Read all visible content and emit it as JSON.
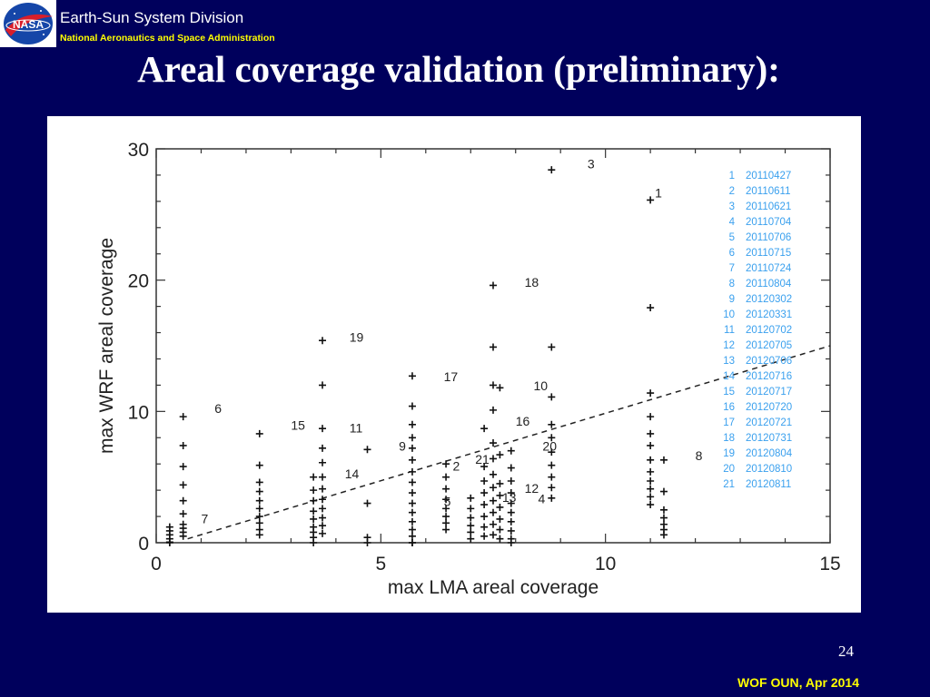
{
  "header": {
    "division": "Earth-Sun System Division",
    "agency": "National Aeronautics and Space Administration",
    "logo_text": "NASA"
  },
  "slide": {
    "title": "Areal coverage validation (preliminary):",
    "number": "24",
    "footer": "WOF OUN, Apr 2014"
  },
  "colors": {
    "background": "#00005c",
    "title": "#ffffff",
    "header_subtitle": "#ffff00",
    "legend_text": "#3aa0ee",
    "marker": "#111111"
  },
  "chart_data": {
    "type": "scatter",
    "title": "",
    "xlabel": "max LMA areal coverage",
    "ylabel": "max WRF areal coverage",
    "xlim": [
      0,
      15
    ],
    "ylim": [
      0,
      30
    ],
    "xticks": [
      "0",
      "5",
      "10",
      "15"
    ],
    "yticks": [
      "0",
      "10",
      "20",
      "30"
    ],
    "legend_position": "top-right",
    "legend": [
      {
        "num": "1",
        "date": "20110427"
      },
      {
        "num": "2",
        "date": "20110611"
      },
      {
        "num": "3",
        "date": "20110621"
      },
      {
        "num": "4",
        "date": "20110704"
      },
      {
        "num": "5",
        "date": "20110706"
      },
      {
        "num": "6",
        "date": "20110715"
      },
      {
        "num": "7",
        "date": "20110724"
      },
      {
        "num": "8",
        "date": "20110804"
      },
      {
        "num": "9",
        "date": "20120302"
      },
      {
        "num": "10",
        "date": "20120331"
      },
      {
        "num": "11",
        "date": "20120702"
      },
      {
        "num": "12",
        "date": "20120705"
      },
      {
        "num": "13",
        "date": "20120706"
      },
      {
        "num": "14",
        "date": "20120716"
      },
      {
        "num": "15",
        "date": "20120717"
      },
      {
        "num": "16",
        "date": "20120720"
      },
      {
        "num": "17",
        "date": "20120721"
      },
      {
        "num": "18",
        "date": "20120731"
      },
      {
        "num": "19",
        "date": "20120804"
      },
      {
        "num": "20",
        "date": "20120810"
      },
      {
        "num": "21",
        "date": "20120811"
      }
    ],
    "reference_line": {
      "style": "dashed",
      "points": [
        [
          0.7,
          0.3
        ],
        [
          15,
          15
        ]
      ]
    },
    "point_labels": [
      {
        "text": "1",
        "x": 11.1,
        "y": 26.3
      },
      {
        "text": "2",
        "x": 6.6,
        "y": 5.5
      },
      {
        "text": "3",
        "x": 9.6,
        "y": 28.5
      },
      {
        "text": "4",
        "x": 8.5,
        "y": 3.0
      },
      {
        "text": "5",
        "x": 6.4,
        "y": 2.8
      },
      {
        "text": "6",
        "x": 1.3,
        "y": 9.9
      },
      {
        "text": "7",
        "x": 1.0,
        "y": 1.5
      },
      {
        "text": "8",
        "x": 12.0,
        "y": 6.3
      },
      {
        "text": "9",
        "x": 5.4,
        "y": 7.0
      },
      {
        "text": "10",
        "x": 8.4,
        "y": 11.6
      },
      {
        "text": "11",
        "x": 4.3,
        "y": 8.4
      },
      {
        "text": "12",
        "x": 8.2,
        "y": 3.8
      },
      {
        "text": "13",
        "x": 7.7,
        "y": 3.1
      },
      {
        "text": "14",
        "x": 4.2,
        "y": 4.9
      },
      {
        "text": "15",
        "x": 3.0,
        "y": 8.6
      },
      {
        "text": "16",
        "x": 8.0,
        "y": 8.9
      },
      {
        "text": "17",
        "x": 6.4,
        "y": 12.3
      },
      {
        "text": "18",
        "x": 8.2,
        "y": 19.5
      },
      {
        "text": "19",
        "x": 4.3,
        "y": 15.3
      },
      {
        "text": "20",
        "x": 8.6,
        "y": 7.0
      },
      {
        "text": "21",
        "x": 7.1,
        "y": 6.0
      }
    ],
    "points": [
      [
        0.3,
        0.0
      ],
      [
        0.3,
        0.3
      ],
      [
        0.3,
        0.6
      ],
      [
        0.3,
        0.9
      ],
      [
        0.3,
        1.2
      ],
      [
        0.6,
        0.5
      ],
      [
        0.6,
        0.8
      ],
      [
        0.6,
        1.1
      ],
      [
        0.6,
        1.4
      ],
      [
        0.6,
        2.2
      ],
      [
        0.6,
        3.2
      ],
      [
        0.6,
        4.4
      ],
      [
        0.6,
        5.8
      ],
      [
        0.6,
        7.4
      ],
      [
        0.6,
        9.6
      ],
      [
        2.3,
        0.6
      ],
      [
        2.3,
        1.0
      ],
      [
        2.3,
        1.5
      ],
      [
        2.3,
        2.0
      ],
      [
        2.3,
        2.6
      ],
      [
        2.3,
        3.2
      ],
      [
        2.3,
        3.9
      ],
      [
        2.3,
        4.6
      ],
      [
        2.3,
        5.9
      ],
      [
        2.3,
        8.3
      ],
      [
        3.5,
        0.4
      ],
      [
        3.5,
        0.8
      ],
      [
        3.5,
        1.2
      ],
      [
        3.5,
        1.8
      ],
      [
        3.5,
        2.4
      ],
      [
        3.5,
        3.2
      ],
      [
        3.5,
        4.0
      ],
      [
        3.5,
        5.0
      ],
      [
        3.7,
        0.7
      ],
      [
        3.7,
        1.3
      ],
      [
        3.7,
        1.9
      ],
      [
        3.7,
        2.6
      ],
      [
        3.7,
        3.3
      ],
      [
        3.7,
        4.1
      ],
      [
        3.7,
        5.0
      ],
      [
        3.7,
        6.1
      ],
      [
        3.7,
        7.2
      ],
      [
        3.7,
        8.7
      ],
      [
        3.7,
        12.0
      ],
      [
        3.7,
        15.4
      ],
      [
        4.7,
        0.0
      ],
      [
        4.7,
        0.4
      ],
      [
        4.7,
        3.0
      ],
      [
        4.7,
        7.1
      ],
      [
        5.7,
        0.0
      ],
      [
        5.7,
        0.5
      ],
      [
        5.7,
        1.0
      ],
      [
        5.7,
        1.6
      ],
      [
        5.7,
        2.3
      ],
      [
        5.7,
        3.0
      ],
      [
        5.7,
        3.8
      ],
      [
        5.7,
        4.6
      ],
      [
        5.7,
        5.4
      ],
      [
        5.7,
        6.3
      ],
      [
        5.7,
        7.2
      ],
      [
        5.7,
        8.0
      ],
      [
        5.7,
        9.0
      ],
      [
        5.7,
        10.4
      ],
      [
        5.7,
        12.7
      ],
      [
        6.45,
        1.0
      ],
      [
        6.45,
        1.5
      ],
      [
        6.45,
        2.0
      ],
      [
        6.45,
        2.6
      ],
      [
        6.45,
        3.3
      ],
      [
        6.45,
        4.1
      ],
      [
        6.45,
        5.0
      ],
      [
        6.45,
        6.0
      ],
      [
        7.0,
        0.3
      ],
      [
        7.0,
        0.8
      ],
      [
        7.0,
        1.3
      ],
      [
        7.0,
        1.9
      ],
      [
        7.0,
        2.6
      ],
      [
        7.0,
        3.4
      ],
      [
        7.3,
        0.5
      ],
      [
        7.3,
        1.2
      ],
      [
        7.3,
        2.0
      ],
      [
        7.3,
        2.9
      ],
      [
        7.3,
        3.8
      ],
      [
        7.3,
        4.7
      ],
      [
        7.3,
        5.8
      ],
      [
        7.3,
        8.7
      ],
      [
        7.5,
        0.6
      ],
      [
        7.5,
        1.4
      ],
      [
        7.5,
        2.3
      ],
      [
        7.5,
        3.2
      ],
      [
        7.5,
        4.2
      ],
      [
        7.5,
        5.2
      ],
      [
        7.5,
        6.4
      ],
      [
        7.5,
        7.6
      ],
      [
        7.5,
        10.1
      ],
      [
        7.5,
        12.0
      ],
      [
        7.5,
        14.9
      ],
      [
        7.5,
        19.6
      ],
      [
        7.65,
        0.3
      ],
      [
        7.65,
        1.0
      ],
      [
        7.65,
        1.8
      ],
      [
        7.65,
        2.7
      ],
      [
        7.65,
        3.6
      ],
      [
        7.65,
        4.5
      ],
      [
        7.65,
        6.7
      ],
      [
        7.65,
        11.8
      ],
      [
        7.9,
        0.3
      ],
      [
        7.9,
        0.9
      ],
      [
        7.9,
        1.6
      ],
      [
        7.9,
        2.3
      ],
      [
        7.9,
        3.0
      ],
      [
        7.9,
        3.8
      ],
      [
        7.9,
        4.7
      ],
      [
        7.9,
        5.7
      ],
      [
        7.9,
        7.0
      ],
      [
        8.8,
        3.4
      ],
      [
        8.8,
        4.2
      ],
      [
        8.8,
        5.0
      ],
      [
        8.8,
        5.9
      ],
      [
        8.8,
        6.9
      ],
      [
        8.8,
        8.0
      ],
      [
        8.8,
        9.0
      ],
      [
        8.8,
        11.1
      ],
      [
        8.8,
        14.9
      ],
      [
        8.8,
        28.4
      ],
      [
        11.0,
        2.9
      ],
      [
        11.0,
        3.5
      ],
      [
        11.0,
        4.1
      ],
      [
        11.0,
        4.7
      ],
      [
        11.0,
        5.4
      ],
      [
        11.0,
        6.3
      ],
      [
        11.0,
        7.4
      ],
      [
        11.0,
        8.3
      ],
      [
        11.0,
        9.6
      ],
      [
        11.0,
        11.4
      ],
      [
        11.0,
        17.9
      ],
      [
        11.0,
        26.1
      ],
      [
        11.3,
        0.6
      ],
      [
        11.3,
        1.0
      ],
      [
        11.3,
        1.4
      ],
      [
        11.3,
        1.9
      ],
      [
        11.3,
        2.5
      ],
      [
        11.3,
        3.9
      ],
      [
        11.3,
        6.3
      ],
      [
        0.3,
        0.05
      ],
      [
        3.5,
        0.0
      ],
      [
        5.7,
        0.0
      ],
      [
        7.9,
        0.0
      ]
    ]
  }
}
